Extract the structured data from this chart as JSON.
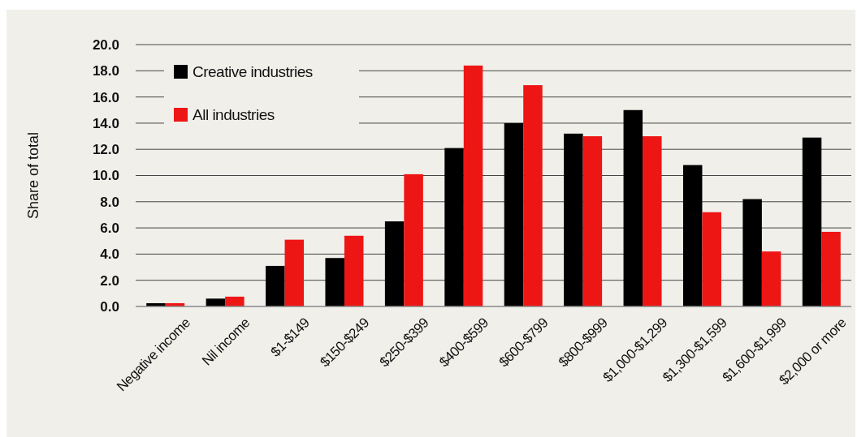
{
  "chart_data": {
    "type": "bar",
    "ylabel": "Share of total",
    "categories": [
      "Negative income",
      "Nil income",
      "$1-$149",
      "$150-$249",
      "$250-$399",
      "$400-$599",
      "$600-$799",
      "$800-$999",
      "$1,000-$1,299",
      "$1,300-$1,599",
      "$1,600-$1,999",
      "$2,000 or more"
    ],
    "series": [
      {
        "name": "Creative industries",
        "color": "#000000",
        "values": [
          0.25,
          0.6,
          3.1,
          3.7,
          6.5,
          12.1,
          14.0,
          13.2,
          15.0,
          10.8,
          8.2,
          12.9
        ]
      },
      {
        "name": "All industries",
        "color": "#ee1515",
        "values": [
          0.25,
          0.75,
          5.1,
          5.4,
          10.1,
          18.4,
          16.9,
          13.0,
          13.0,
          7.2,
          4.2,
          5.7
        ]
      }
    ],
    "ylim": [
      0,
      20
    ],
    "yticks": [
      {
        "value": 0,
        "label": "0.0"
      },
      {
        "value": 2,
        "label": "2.0"
      },
      {
        "value": 4,
        "label": "4.0"
      },
      {
        "value": 6,
        "label": "6.0"
      },
      {
        "value": 8,
        "label": "8.0"
      },
      {
        "value": 10,
        "label": "10.0"
      },
      {
        "value": 12,
        "label": "12.0"
      },
      {
        "value": 14,
        "label": "14.0"
      },
      {
        "value": 16,
        "label": "16.0"
      },
      {
        "value": 18,
        "label": "18.0"
      },
      {
        "value": 20,
        "label": "20.0"
      }
    ],
    "grid": "y",
    "legend": "top left"
  }
}
